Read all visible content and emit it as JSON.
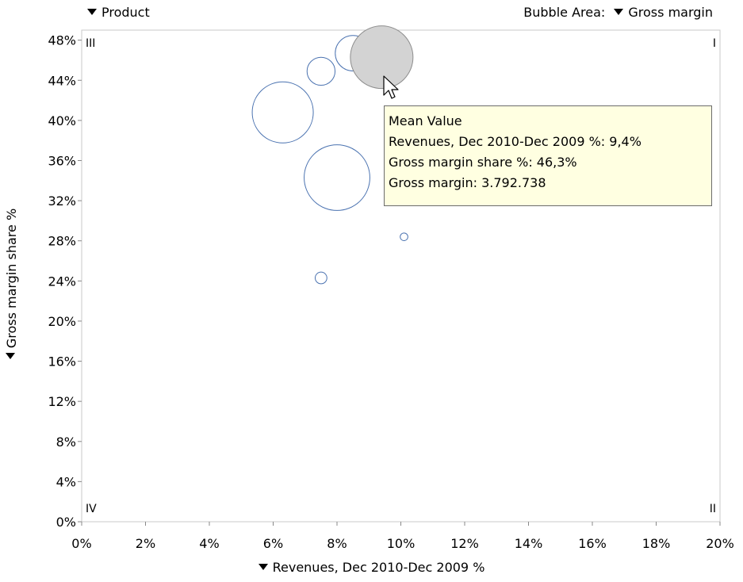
{
  "controls": {
    "product_label": "Product",
    "bubble_area_prefix": "Bubble Area:",
    "bubble_area_label": "Gross margin"
  },
  "chart_data": {
    "type": "scatter",
    "variant": "bubble",
    "title": "",
    "xlabel": "Revenues, Dec 2010-Dec 2009 %",
    "ylabel": "Gross margin share %",
    "xlim": [
      0,
      20
    ],
    "ylim": [
      0,
      49
    ],
    "x_ticks": [
      "0%",
      "2%",
      "4%",
      "6%",
      "8%",
      "10%",
      "12%",
      "14%",
      "16%",
      "18%",
      "20%"
    ],
    "y_ticks": [
      "0%",
      "4%",
      "8%",
      "12%",
      "16%",
      "20%",
      "24%",
      "28%",
      "32%",
      "36%",
      "40%",
      "44%",
      "48%"
    ],
    "x_tick_values": [
      0,
      2,
      4,
      6,
      8,
      10,
      12,
      14,
      16,
      18,
      20
    ],
    "y_tick_values": [
      0,
      4,
      8,
      12,
      16,
      20,
      24,
      28,
      32,
      36,
      40,
      44,
      48
    ],
    "grid": false,
    "quadrant_labels": {
      "top_left": "III",
      "top_right": "I",
      "bottom_left": "IV",
      "bottom_right": "II"
    },
    "bubble_color": "#4a72b0",
    "highlight_fill": "#d3d3d3",
    "highlight_stroke": "#8c8c8c",
    "points": [
      {
        "x": 8.5,
        "y": 46.7,
        "size": 0.32
      },
      {
        "x": 7.5,
        "y": 44.9,
        "size": 0.2
      },
      {
        "x": 6.3,
        "y": 40.8,
        "size": 0.95
      },
      {
        "x": 8.0,
        "y": 34.3,
        "size": 1.1
      },
      {
        "x": 10.1,
        "y": 28.4,
        "size": 0.015
      },
      {
        "x": 7.5,
        "y": 24.3,
        "size": 0.035
      },
      {
        "x": 9.4,
        "y": 46.3,
        "size": 1.0,
        "highlighted": true
      }
    ]
  },
  "tooltip": {
    "title": "Mean Value",
    "line1": "Revenues, Dec 2010-Dec 2009 %: 9,4%",
    "line2": "Gross margin share %: 46,3%",
    "line3": "Gross margin: 3.792.738"
  }
}
